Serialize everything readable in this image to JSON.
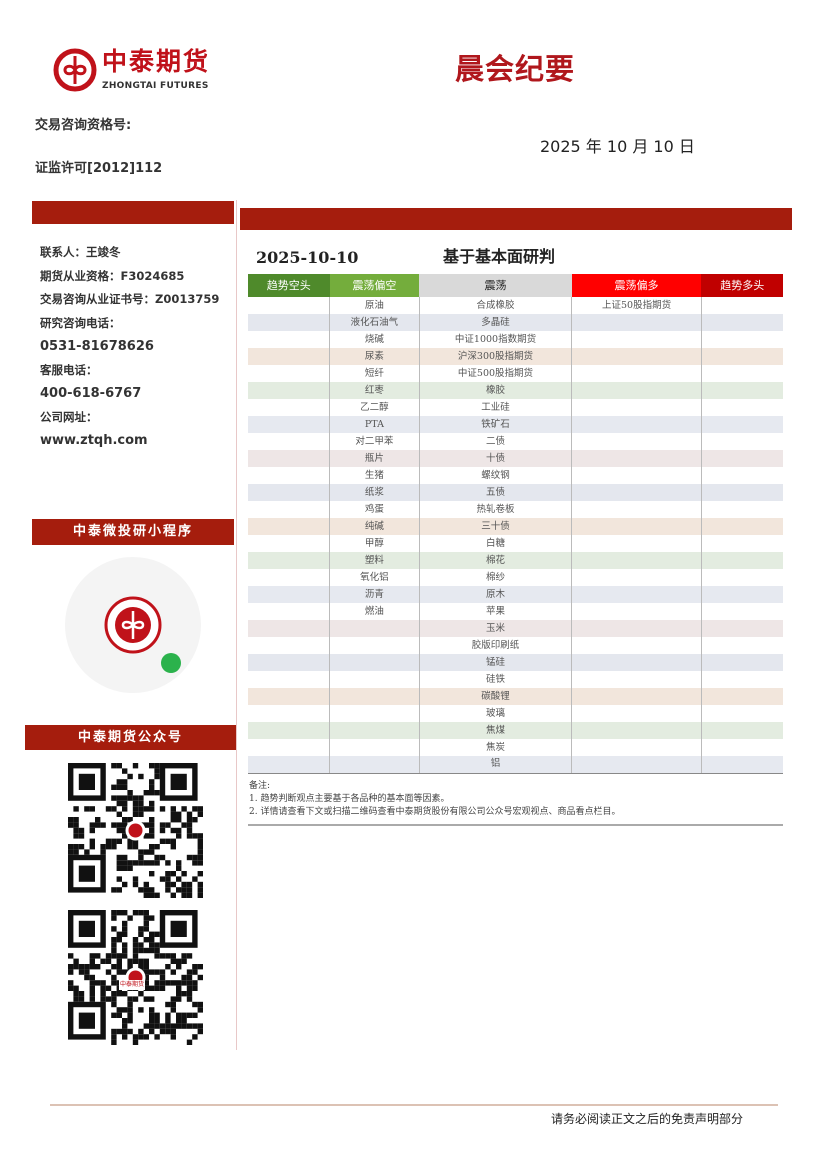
{
  "header": {
    "logo_cn": "中泰期货",
    "logo_en": "ZHONGTAI FUTURES",
    "title": "晨会纪要",
    "qualification_label": "交易咨询资格号:",
    "license": "证监许可[2012]112",
    "date": "2025 年 10 月 10 日"
  },
  "contact": [
    "联系人：王竣冬",
    "期货从业资格：F3024685",
    "交易咨询从业证书号：Z0013759",
    "研究咨询电话：",
    "0531-81678626",
    "客服电话：",
    "400-618-6767",
    "公司网址：",
    "www.ztqh.com"
  ],
  "sections": {
    "mini_program": "中泰微投研小程序",
    "official_account": "中泰期货公众号",
    "qr_logo_text": "中泰期货"
  },
  "table": {
    "date": "2025-10-10",
    "title": "基于基本面研判",
    "columns": [
      {
        "label": "趋势空头",
        "color": "#4f8a2b"
      },
      {
        "label": "震荡偏空",
        "color": "#74ad3c"
      },
      {
        "label": "震荡",
        "color": "#d9d9d9"
      },
      {
        "label": "震荡偏多",
        "color": "#ff0000"
      },
      {
        "label": "趋势多头",
        "color": "#c00000"
      }
    ],
    "trend_short": [],
    "range_short": [
      "原油",
      "液化石油气",
      "烧碱",
      "尿素",
      "短纤",
      "红枣",
      "乙二醇",
      "PTA",
      "对二甲苯",
      "瓶片",
      "生猪",
      "纸浆",
      "鸡蛋",
      "纯碱",
      "甲醇",
      "塑料",
      "氧化铝",
      "沥青",
      "燃油"
    ],
    "range": [
      "合成橡胶",
      "多晶硅",
      "中证1000指数期货",
      "沪深300股指期货",
      "中证500股指期货",
      "橡胶",
      "工业硅",
      "铁矿石",
      "二债",
      "十债",
      "螺纹钢",
      "五债",
      "热轧卷板",
      "三十债",
      "白糖",
      "棉花",
      "棉纱",
      "原木",
      "苹果",
      "玉米",
      "胶版印刷纸",
      "锰硅",
      "硅铁",
      "碳酸锂",
      "玻璃",
      "焦煤",
      "焦炭",
      "铝"
    ],
    "range_long": [
      "上证50股指期货"
    ],
    "trend_long": []
  },
  "notes": {
    "heading": "备注:",
    "items": [
      "1. 趋势判断观点主要基于各品种的基本面等因素。",
      "2. 详情请查看下文或扫描二维码查看中泰期货股份有限公司公众号宏观视点、商品看点栏目。"
    ]
  },
  "footer": "请务必阅读正文之后的免责声明部分",
  "colors": {
    "brand_red": "#c0121a",
    "bar_red": "#a51d0d"
  }
}
